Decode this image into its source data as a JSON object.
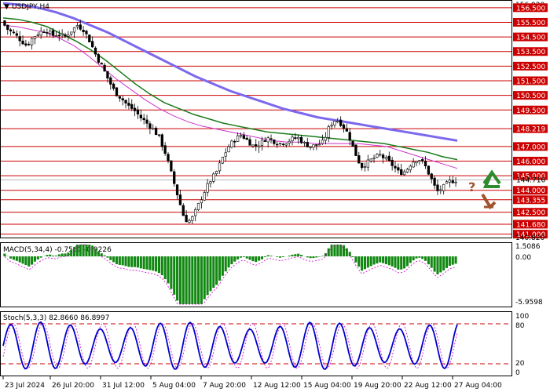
{
  "window": {
    "symbol_title": "USDJPY,H4"
  },
  "price_panel": {
    "top_price_label": "156.920",
    "bottom_price_label": "140.820",
    "levels": [
      {
        "label": "156.500",
        "value": 156.5
      },
      {
        "label": "155.500",
        "value": 155.5
      },
      {
        "label": "154.500",
        "value": 154.5
      },
      {
        "label": "153.500",
        "value": 153.5
      },
      {
        "label": "152.500",
        "value": 152.5
      },
      {
        "label": "151.500",
        "value": 151.5
      },
      {
        "label": "150.500",
        "value": 150.5
      },
      {
        "label": "149.500",
        "value": 149.5
      },
      {
        "label": "148.219",
        "value": 148.219
      },
      {
        "label": "147.000",
        "value": 147.0
      },
      {
        "label": "146.000",
        "value": 146.0
      },
      {
        "label": "145.000",
        "value": 145.0
      },
      {
        "label": "144.000",
        "value": 144.0
      },
      {
        "label": "143.355",
        "value": 143.355
      },
      {
        "label": "142.500",
        "value": 142.5
      },
      {
        "label": "141.680",
        "value": 141.68
      },
      {
        "label": "141.000",
        "value": 141.0
      }
    ],
    "current_price_label": "144.716",
    "current_price": 144.716
  },
  "macd_panel": {
    "title": "MACD(5,34,4) -0.7560 -0.9226",
    "top_label": "1.5086",
    "zero_label": "0.00",
    "bottom_label": "-5.9598"
  },
  "stoch_panel": {
    "title": "Stoch(5,3,3) 82.8660 86.8997",
    "labels": [
      "100",
      "80",
      "20",
      "0"
    ]
  },
  "time_axis": {
    "labels": [
      "23 Jul 2024",
      "26 Jul 20:00",
      "31 Jul 12:00",
      "5 Aug 04:00",
      "7 Aug 20:00",
      "12 Aug 12:00",
      "15 Aug 04:00",
      "19 Aug 20:00",
      "22 Aug 12:00",
      "27 Aug 04:00"
    ]
  },
  "arrows": {
    "up_color": "#2e8b2e",
    "down_color": "#a0522d",
    "question_mark": "?"
  },
  "colors": {
    "bullish_candle": "#ffffff",
    "bearish_candle": "#000000",
    "level_line": "#cc0000",
    "ma_fast": "#cc33cc",
    "ma_mid": "#1a7a1a",
    "ma_slow": "#7b68ee",
    "macd_hist": "#118811",
    "macd_signal": "#cc00cc",
    "stoch_main": "#0000cc",
    "stoch_signal": "#cc00cc"
  },
  "chart_data": {
    "type": "candlestick",
    "symbol": "USDJPY",
    "timeframe": "H4",
    "close_path": [
      155.6,
      155.0,
      154.7,
      154.3,
      153.9,
      154.5,
      154.8,
      155.0,
      154.6,
      154.7,
      154.5,
      154.9,
      155.3,
      155.0,
      154.2,
      153.2,
      152.4,
      151.5,
      150.7,
      150.3,
      149.8,
      149.5,
      149.0,
      148.6,
      148.2,
      147.6,
      146.5,
      145.0,
      143.5,
      142.0,
      141.9,
      142.8,
      143.8,
      144.6,
      145.2,
      146.2,
      147.0,
      147.5,
      147.8,
      147.4,
      147.0,
      147.2,
      147.6,
      147.4,
      147.2,
      147.3,
      147.5,
      147.6,
      147.2,
      147.0,
      147.1,
      147.3,
      148.4,
      148.9,
      148.5,
      147.8,
      146.6,
      145.6,
      145.9,
      146.2,
      146.4,
      146.1,
      145.7,
      145.2,
      145.3,
      145.9,
      146.2,
      145.8,
      144.9,
      143.9,
      144.2,
      144.6,
      144.7
    ],
    "ma_fast": [
      155.3,
      155.2,
      155.0,
      154.8,
      154.4,
      153.9,
      153.2,
      152.4,
      151.6,
      150.9,
      150.2,
      149.6,
      149.1,
      148.7,
      148.4,
      148.2,
      148.0,
      147.8,
      147.6,
      147.4,
      147.3,
      147.3,
      147.2,
      147.2,
      147.2,
      147.2,
      147.1,
      147.0,
      146.7,
      146.4,
      146.1,
      145.8,
      145.5
    ],
    "ma_mid": [
      155.8,
      155.7,
      155.5,
      155.2,
      154.7,
      154.2,
      153.6,
      152.9,
      152.1,
      151.3,
      150.6,
      150.0,
      149.6,
      149.2,
      148.9,
      148.6,
      148.4,
      148.2,
      148.0,
      147.9,
      147.8,
      147.7,
      147.6,
      147.5,
      147.4,
      147.3,
      147.2,
      147.0,
      146.8,
      146.6,
      146.3,
      146.1
    ],
    "ma_slow": [
      156.8,
      156.7,
      156.5,
      156.2,
      155.8,
      155.3,
      154.8,
      154.2,
      153.6,
      153.0,
      152.4,
      151.8,
      151.3,
      150.8,
      150.4,
      150.0,
      149.6,
      149.3,
      149.0,
      148.8,
      148.6,
      148.4,
      148.2,
      148.0,
      147.8,
      147.6,
      147.4
    ]
  }
}
